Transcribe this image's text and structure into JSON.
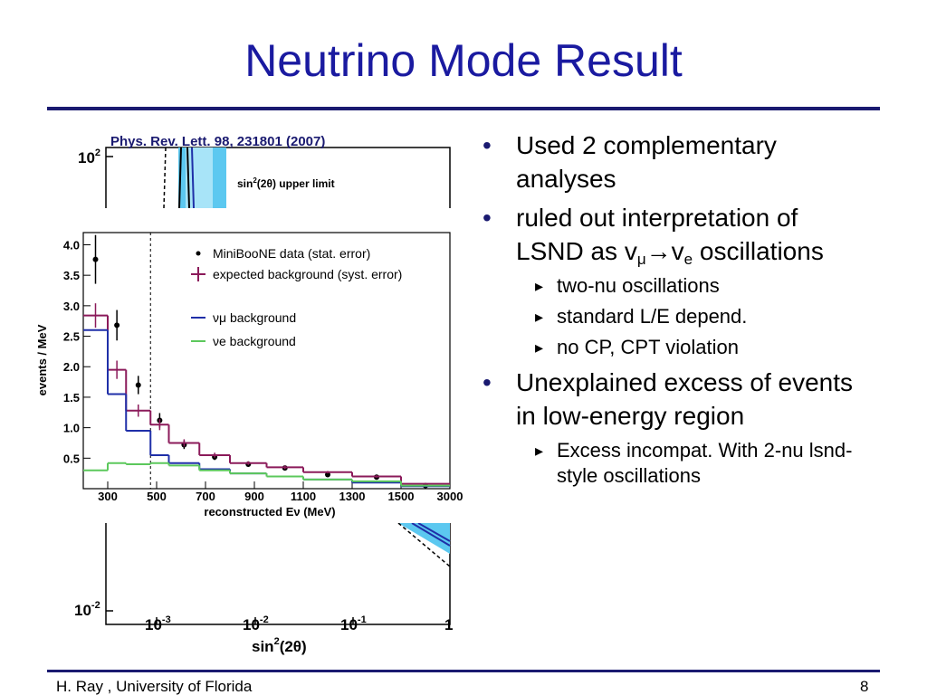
{
  "title": "Neutrino Mode Result",
  "figure": {
    "citation": "Phys. Rev. Lett. 98, 231801 (2007)",
    "background_plot": {
      "yticks": [
        {
          "base": "10",
          "exp": "2"
        },
        {
          "base": "10",
          "exp": "-2"
        }
      ],
      "xticks": [
        {
          "base": "10",
          "exp": "-3"
        },
        {
          "base": "10",
          "exp": "-2"
        },
        {
          "base": "10",
          "exp": "-1"
        },
        {
          "base": "1"
        }
      ],
      "xlabel": {
        "base": "sin",
        "exp": "2",
        "rest": "(2θ)"
      },
      "legend": {
        "base": "sin",
        "exp": "2",
        "rest": "(2θ) upper limit"
      }
    },
    "chart_data": {
      "type": "histogram",
      "ylabel": "events / MeV",
      "xlabel": "reconstructed Eν (MeV)",
      "bins": [
        200,
        300,
        375,
        475,
        550,
        675,
        800,
        950,
        1100,
        1300,
        1500,
        3000
      ],
      "xlim": [
        200,
        3000
      ],
      "xticks": [
        300,
        500,
        700,
        900,
        1100,
        1300,
        1500,
        3000
      ],
      "ylim": [
        0,
        4.2
      ],
      "yticks": [
        0.5,
        {
          "value": 1,
          "label": "1.0"
        },
        1.5,
        {
          "value": 2,
          "label": "2.0"
        },
        2.5,
        {
          "value": 3,
          "label": "3.0"
        },
        3.5,
        {
          "value": 4,
          "label": "4.0"
        }
      ],
      "vline": 475,
      "series": [
        {
          "name": "MiniBooNE data (stat. error)",
          "color": "#000000",
          "style": "points",
          "values": [
            3.76,
            2.68,
            1.7,
            1.12,
            0.72,
            0.52,
            0.4,
            0.34,
            0.23,
            0.19,
            0.05
          ],
          "errors": [
            0.4,
            0.25,
            0.15,
            0.12,
            0.07,
            0.05,
            0.04,
            0.035,
            0.03,
            0.03,
            0.02
          ]
        },
        {
          "name": "expected background (syst. error)",
          "color": "#8b1a5a",
          "style": "step",
          "values": [
            2.84,
            1.95,
            1.28,
            1.05,
            0.75,
            0.55,
            0.42,
            0.35,
            0.27,
            0.2,
            0.08
          ],
          "errors": [
            0.2,
            0.15,
            0.1,
            0.09,
            0.06,
            0.04,
            0.03,
            0.03,
            0.02,
            0.02,
            0.01
          ]
        },
        {
          "name": "νμ background",
          "color": "#1f2fa8",
          "style": "step",
          "values": [
            2.6,
            1.55,
            0.95,
            0.55,
            0.42,
            0.32,
            0.25,
            0.2,
            0.15,
            0.1,
            0.04
          ]
        },
        {
          "name": "νe background",
          "color": "#5cc85c",
          "style": "step",
          "values": [
            0.3,
            0.42,
            0.4,
            0.42,
            0.38,
            0.3,
            0.25,
            0.2,
            0.15,
            0.12,
            0.05
          ]
        }
      ]
    }
  },
  "bullets": [
    {
      "text": "Used 2 complementary analyses"
    },
    {
      "parts": [
        "ruled out interpretation of LSND as v",
        "μ",
        "→v",
        "e",
        " oscillations"
      ],
      "subitems": [
        "two-nu oscillations",
        "standard L/E depend.",
        "no CP, CPT violation"
      ]
    },
    {
      "text": "Unexplained excess of events in low-energy region",
      "subitems": [
        "Excess incompat. With 2-nu lsnd-style oscillations"
      ]
    }
  ],
  "footer": {
    "left": "H. Ray , University of Florida",
    "right": "8"
  }
}
